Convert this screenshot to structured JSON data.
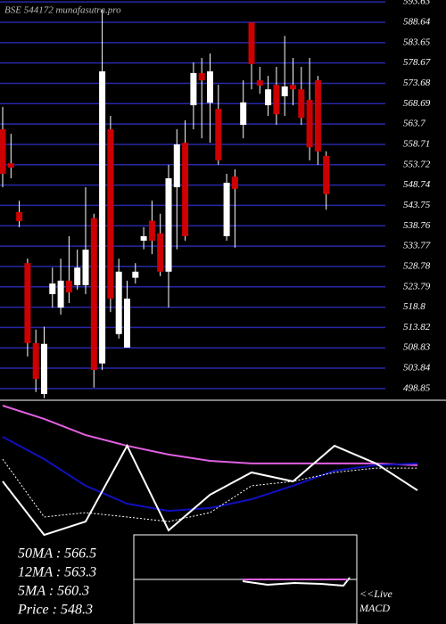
{
  "chart_data": [
    {
      "type": "candlestick",
      "title": "BSE 544172 munafasutra.pro",
      "ylim": [
        496.2,
        594.1
      ],
      "yticks": [
        593.63,
        588.64,
        583.65,
        578.67,
        573.68,
        568.69,
        563.7,
        558.71,
        553.72,
        548.74,
        543.75,
        538.76,
        533.77,
        528.78,
        523.79,
        518.8,
        513.82,
        508.83,
        503.84,
        498.85
      ],
      "grid": true,
      "up_color": "#ffffff",
      "down_color": "#cc0000",
      "open": [
        562.4,
        554.1,
        542.1,
        529.6,
        510.0,
        497.5,
        522.0,
        518.7,
        525.3,
        524.2,
        524.2,
        540.6,
        505.0,
        562.4,
        512.2,
        508.9,
        526.0,
        535.1,
        540.0,
        536.9,
        527.5,
        548.2,
        559.1,
        568.3,
        576.2,
        568.9,
        567.4,
        536.2,
        550.8,
        563.5,
        588.6,
        574.4,
        568.3,
        573.3,
        570.5,
        573.3,
        572.2,
        569.6,
        574.4,
        555.9
      ],
      "high": [
        567.9,
        561.3,
        544.9,
        530.7,
        513.3,
        514.0,
        528.5,
        530.7,
        536.2,
        532.9,
        548.2,
        541.7,
        591.9,
        565.7,
        530.7,
        525.3,
        529.6,
        538.4,
        544.9,
        541.7,
        553.7,
        562.4,
        564.6,
        578.8,
        579.9,
        581.0,
        573.3,
        551.5,
        552.6,
        574.4,
        588.6,
        577.7,
        575.5,
        577.7,
        585.3,
        579.9,
        577.7,
        579.9,
        575.5,
        557.0
      ],
      "low": [
        548.2,
        550.4,
        538.4,
        506.7,
        498.0,
        496.5,
        518.7,
        517.0,
        519.8,
        523.1,
        522.0,
        499.1,
        503.4,
        517.6,
        511.1,
        508.9,
        524.6,
        533.0,
        531.8,
        526.4,
        518.7,
        533.0,
        535.1,
        562.4,
        560.2,
        559.1,
        553.7,
        535.1,
        533.4,
        560.2,
        572.2,
        571.1,
        565.7,
        563.5,
        565.7,
        568.3,
        563.5,
        554.8,
        553.7,
        542.7
      ],
      "close": [
        551.5,
        553.0,
        539.9,
        510.0,
        501.2,
        509.8,
        524.6,
        525.3,
        522.4,
        528.5,
        532.9,
        503.4,
        576.6,
        520.9,
        527.5,
        520.9,
        527.5,
        536.2,
        535.1,
        527.5,
        550.4,
        558.7,
        536.2,
        576.2,
        574.4,
        576.6,
        554.8,
        549.3,
        547.8,
        569.0,
        578.4,
        573.1,
        572.2,
        566.1,
        572.9,
        572.2,
        565.2,
        558.0,
        557.0,
        546.5
      ]
    },
    {
      "type": "line",
      "xlim": [
        0,
        50
      ],
      "ylim": [
        0,
        100
      ],
      "x": [
        0,
        5,
        10,
        15,
        20,
        25,
        30,
        35,
        40,
        45,
        50
      ],
      "series": [
        {
          "color": "#e060e0",
          "dash": false,
          "values": [
            100,
            93.9,
            86.5,
            81.6,
            77.6,
            74.7,
            73.5,
            73.5,
            73.5,
            73.5,
            72.7
          ]
        },
        {
          "color": "#1010c0",
          "dash": false,
          "values": [
            85.7,
            75.5,
            63.3,
            55.1,
            51.8,
            53.1,
            57.1,
            63.3,
            70.2,
            72.7,
            73.5
          ]
        },
        {
          "color": "#ffffff",
          "dash": false,
          "values": [
            65.3,
            40.8,
            46.9,
            81.6,
            42.9,
            59.2,
            69.4,
            65.3,
            81.6,
            73.5,
            61.2
          ]
        },
        {
          "color": "#ffffff",
          "dash": true,
          "values": [
            75.5,
            49.0,
            51.0,
            49.0,
            46.9,
            51.0,
            63.3,
            65.3,
            69.4,
            71.4,
            71.4
          ]
        }
      ],
      "annotations": [
        "50MA : 566.5",
        "12MA : 563.3",
        "5MA : 560.3",
        "Price   : 548.3",
        "<<Live",
        "MACD"
      ]
    }
  ]
}
